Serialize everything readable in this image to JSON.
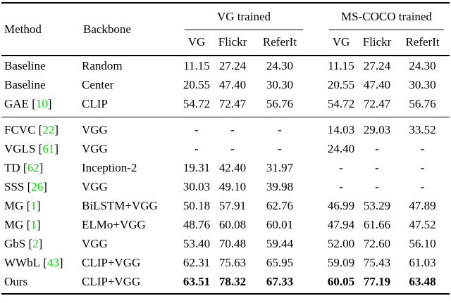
{
  "page": {
    "background": "#ffffff",
    "text_color": "#000000"
  },
  "citation": {
    "color": "#00e000",
    "bracket_left": "[",
    "bracket_right": "]"
  },
  "table": {
    "header": {
      "method": "Method",
      "backbone": "Backbone",
      "group1": "VG trained",
      "group2": "MS-COCO trained",
      "subcols": [
        "VG",
        "Flickr",
        "ReferIt"
      ]
    },
    "sections": [
      {
        "rows": [
          {
            "method": "Baseline",
            "cite": null,
            "backbone": "Random",
            "vg": [
              "11.15",
              "27.24",
              "24.30"
            ],
            "coco": [
              "11.15",
              "27.24",
              "24.30"
            ],
            "bold": false
          },
          {
            "method": "Baseline",
            "cite": null,
            "backbone": "Center",
            "vg": [
              "20.55",
              "47.40",
              "30.30"
            ],
            "coco": [
              "20.55",
              "47.40",
              "30.30"
            ],
            "bold": false
          },
          {
            "method": "GAE",
            "cite": "10",
            "backbone": "CLIP",
            "vg": [
              "54.72",
              "72.47",
              "56.76"
            ],
            "coco": [
              "54.72",
              "72.47",
              "56.76"
            ],
            "bold": false
          }
        ]
      },
      {
        "rows": [
          {
            "method": "FCVC",
            "cite": "22",
            "backbone": "VGG",
            "vg": [
              "-",
              "-",
              "-"
            ],
            "coco": [
              "14.03",
              "29.03",
              "33.52"
            ],
            "bold": false
          },
          {
            "method": "VGLS",
            "cite": "61",
            "backbone": "VGG",
            "vg": [
              "-",
              "-",
              "-"
            ],
            "coco": [
              "24.40",
              "-",
              "-"
            ],
            "bold": false
          },
          {
            "method": "TD",
            "cite": "62",
            "backbone": "Inception-2",
            "vg": [
              "19.31",
              "42.40",
              "31.97"
            ],
            "coco": [
              "-",
              "-",
              "-"
            ],
            "bold": false
          },
          {
            "method": "SSS",
            "cite": "26",
            "backbone": "VGG",
            "vg": [
              "30.03",
              "49.10",
              "39.98"
            ],
            "coco": [
              "-",
              "-",
              "-"
            ],
            "bold": false
          },
          {
            "method": "MG",
            "cite": "1",
            "backbone": "BiLSTM+VGG",
            "vg": [
              "50.18",
              "57.91",
              "62.76"
            ],
            "coco": [
              "46.99",
              "53.29",
              "47.89"
            ],
            "bold": false
          },
          {
            "method": "MG",
            "cite": "1",
            "backbone": "ELMo+VGG",
            "vg": [
              "48.76",
              "60.08",
              "60.01"
            ],
            "coco": [
              "47.94",
              "61.66",
              "47.52"
            ],
            "bold": false
          },
          {
            "method": "GbS",
            "cite": "2",
            "backbone": "VGG",
            "vg": [
              "53.40",
              "70.48",
              "59.44"
            ],
            "coco": [
              "52.00",
              "72.60",
              "56.10"
            ],
            "bold": false
          },
          {
            "method": "WWbL",
            "cite": "43",
            "backbone": "CLIP+VGG",
            "vg": [
              "62.31",
              "75.63",
              "65.95"
            ],
            "coco": [
              "59.09",
              "75.43",
              "61.03"
            ],
            "bold": false
          },
          {
            "method": "Ours",
            "cite": null,
            "backbone": "CLIP+VGG",
            "vg": [
              "63.51",
              "78.32",
              "67.33"
            ],
            "coco": [
              "60.05",
              "77.19",
              "63.48"
            ],
            "bold": true
          }
        ]
      }
    ]
  }
}
